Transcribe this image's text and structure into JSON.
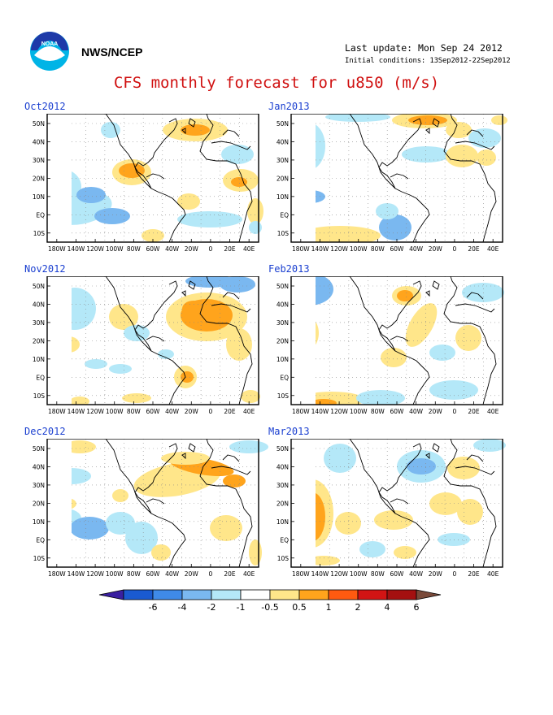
{
  "header": {
    "org": "NWS/NCEP",
    "last_update": "Last update: Mon Sep 24 2012",
    "initial_conditions": "Initial conditions: 13Sep2012-22Sep2012",
    "title": "CFS monthly forecast for u850 (m/s)",
    "logo_text": "NOAA"
  },
  "axes": {
    "lon_labels": [
      "180W",
      "140W",
      "120W",
      "100W",
      "80W",
      "60W",
      "40W",
      "20W",
      "0",
      "20E",
      "40E"
    ],
    "lat_labels": [
      "50N",
      "40N",
      "30N",
      "20N",
      "10N",
      "EQ",
      "10S"
    ]
  },
  "colorbar": {
    "labels": [
      "-6",
      "-4",
      "-2",
      "-1",
      "-0.5",
      "0.5",
      "1",
      "2",
      "4",
      "6"
    ],
    "colors": [
      "#3a1fa0",
      "#1a5ad0",
      "#3f8ae8",
      "#7ab8f0",
      "#b4e8f8",
      "#ffffff",
      "#ffe68a",
      "#ffa41c",
      "#ff5a10",
      "#d21414",
      "#a41010",
      "#7a4a3a"
    ]
  },
  "panels": [
    {
      "id": "oct",
      "title": "Oct2012"
    },
    {
      "id": "nov",
      "title": "Nov2012"
    },
    {
      "id": "dec",
      "title": "Dec2012"
    },
    {
      "id": "jan",
      "title": "Jan2013"
    },
    {
      "id": "feb",
      "title": "Feb2013"
    },
    {
      "id": "mar",
      "title": "Mar2013"
    }
  ]
}
